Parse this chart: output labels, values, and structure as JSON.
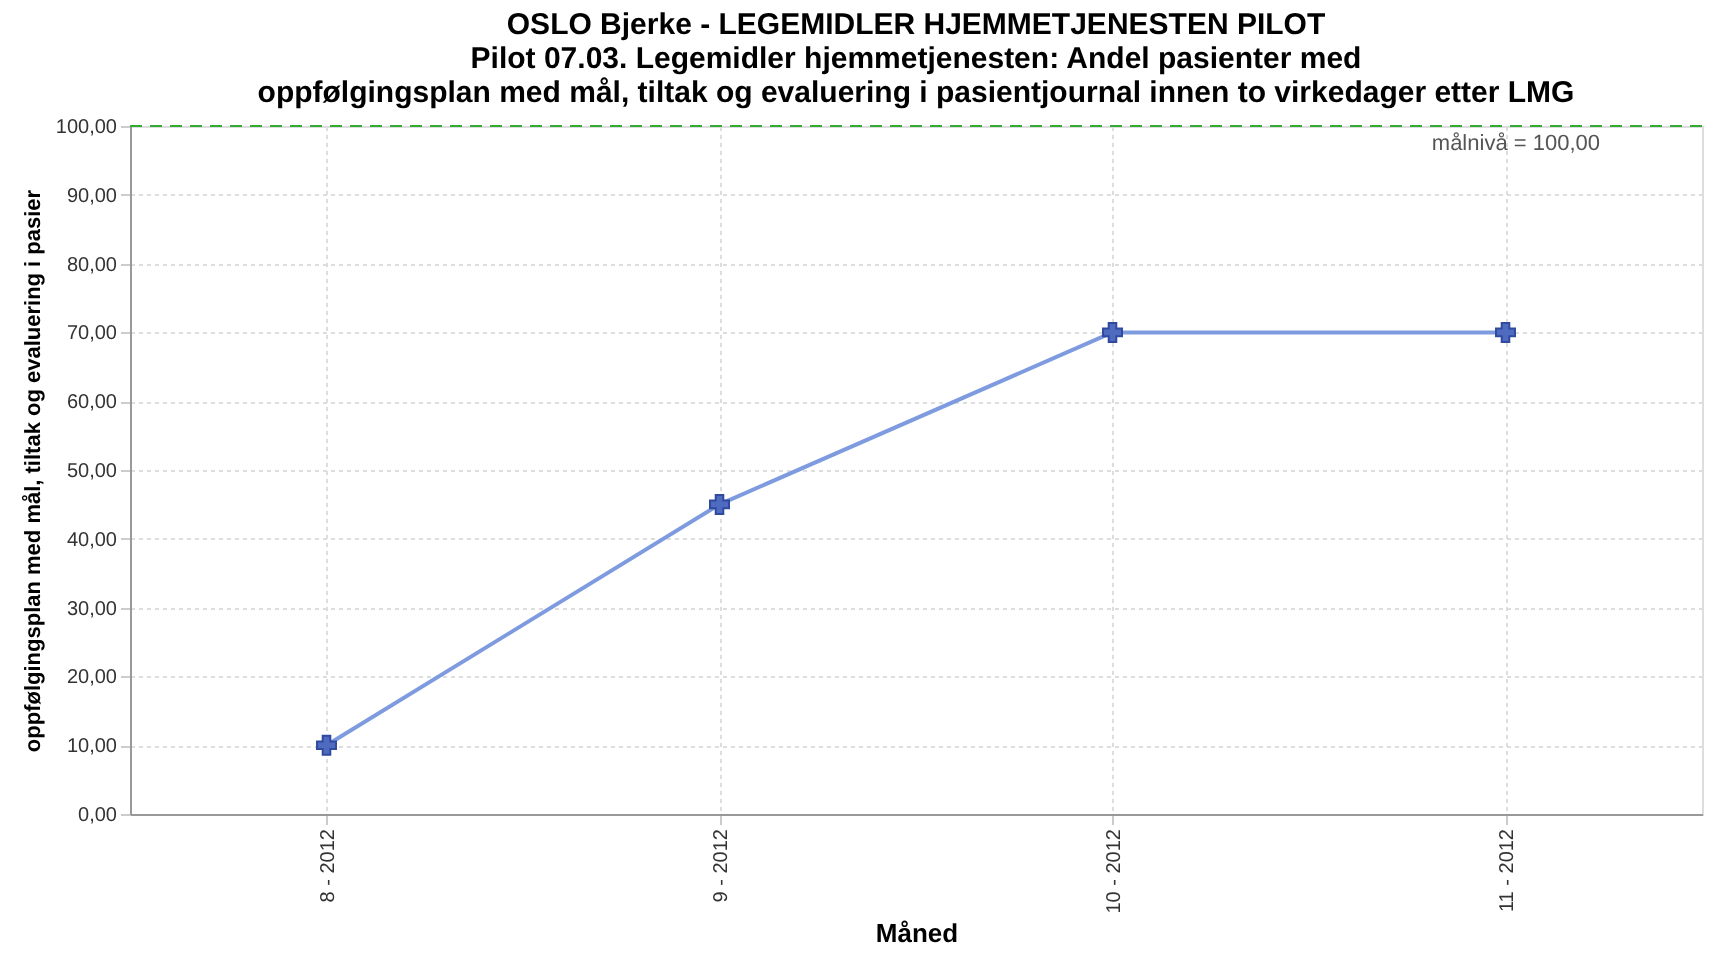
{
  "chart_data": {
    "type": "line",
    "title": "OSLO Bjerke - LEGEMIDLER HJEMMETJENESTEN PILOT",
    "subtitle": "Pilot 07.03. Legemidler hjemmetjenesten: Andel pasienter med oppfølgingsplan med mål, tiltak og evaluering i pasientjournal innen to virkedager etter LMG",
    "xlabel": "Måned",
    "ylabel": "oppfølgingsplan med mål, tiltak og evaluering i pasier",
    "categories": [
      "8 - 2012",
      "9 - 2012",
      "10 - 2012",
      "11 - 2012"
    ],
    "series": [
      {
        "color": "#7f9be0",
        "values": [
          10,
          45,
          70,
          70
        ]
      }
    ],
    "ylim": [
      0,
      100
    ],
    "yticks": [
      {
        "value": 0,
        "label": "0,00"
      },
      {
        "value": 10,
        "label": "10,00"
      },
      {
        "value": 20,
        "label": "20,00"
      },
      {
        "value": 30,
        "label": "30,00"
      },
      {
        "value": 40,
        "label": "40,00"
      },
      {
        "value": 50,
        "label": "50,00"
      },
      {
        "value": 60,
        "label": "60,00"
      },
      {
        "value": 70,
        "label": "70,00"
      },
      {
        "value": 80,
        "label": "80,00"
      },
      {
        "value": 90,
        "label": "90,00"
      },
      {
        "value": 100,
        "label": "100,00"
      }
    ],
    "ref_lines": [
      {
        "axis": "y",
        "value": 100,
        "label": "målnivå = 100,00",
        "color": "#33aa33",
        "line_style": "dashed"
      }
    ],
    "grid": true,
    "marker": "cross",
    "line_style": "solid"
  }
}
